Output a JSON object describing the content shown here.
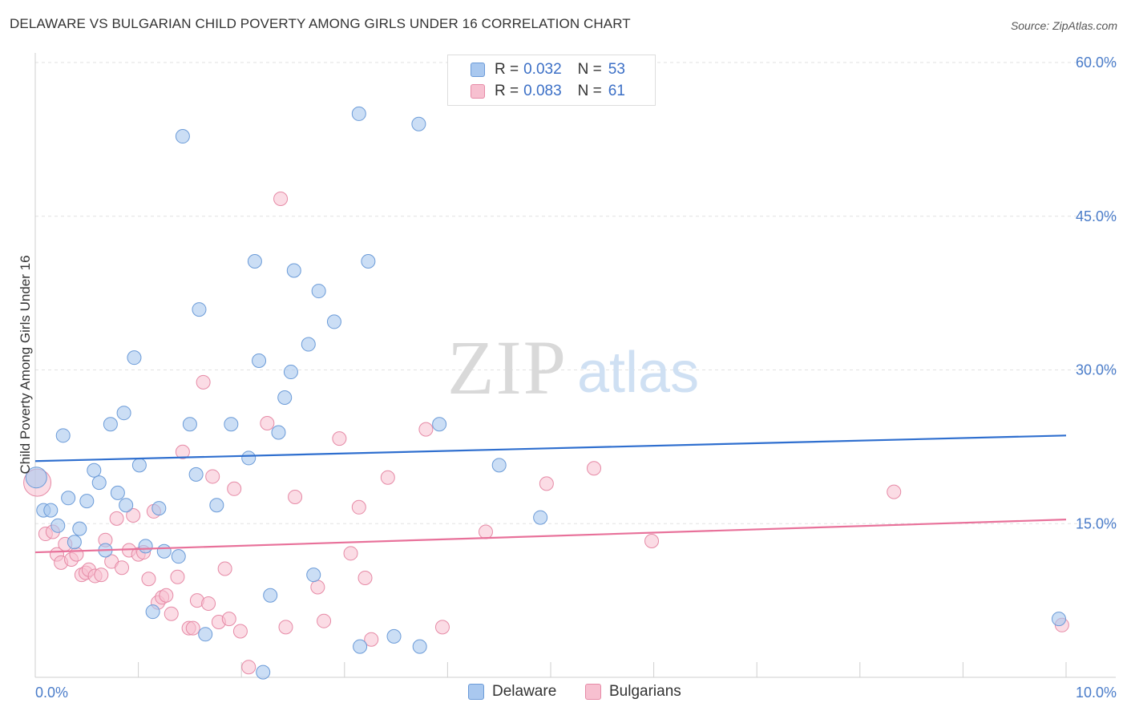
{
  "title": "DELAWARE VS BULGARIAN CHILD POVERTY AMONG GIRLS UNDER 16 CORRELATION CHART",
  "source": "Source: ZipAtlas.com",
  "watermark": {
    "zip": "ZIP",
    "atlas": "atlas"
  },
  "legend": {
    "rows": [
      {
        "r_label": "R =",
        "r_value": "0.032",
        "n_label": "N =",
        "n_value": "53",
        "color": "#a9c8ef",
        "border": "#6b9bd8"
      },
      {
        "r_label": "R =",
        "r_value": "0.083",
        "n_label": "N =",
        "n_value": "61",
        "color": "#f7c0d0",
        "border": "#e68aa6"
      }
    ]
  },
  "bottom_legend": {
    "delaware": "Delaware",
    "bulgarians": "Bulgarians"
  },
  "chart_data": {
    "type": "scatter",
    "title": "DELAWARE VS BULGARIAN CHILD POVERTY AMONG GIRLS UNDER 16 CORRELATION CHART",
    "xlabel": "",
    "ylabel": "Child Poverty Among Girls Under 16",
    "xlim": [
      0,
      10
    ],
    "ylim": [
      0,
      60
    ],
    "x_tick_labels": [
      "0.0%",
      "10.0%"
    ],
    "y_tick_labels": [
      "15.0%",
      "30.0%",
      "45.0%",
      "60.0%"
    ],
    "y_ticks": [
      15,
      30,
      45,
      60
    ],
    "grid": true,
    "legend_position": "top-center",
    "series": [
      {
        "name": "Delaware",
        "color": "#a9c8ef",
        "stroke": "#6b9bd8",
        "trend_color": "#2f6fcf",
        "trend": {
          "x0": 0,
          "y0": 21.1,
          "x1": 10,
          "y1": 23.6
        },
        "points": [
          [
            0.01,
            19.5
          ],
          [
            0.08,
            16.3
          ],
          [
            0.15,
            16.3
          ],
          [
            0.22,
            14.8
          ],
          [
            0.27,
            23.6
          ],
          [
            0.32,
            17.5
          ],
          [
            0.38,
            13.2
          ],
          [
            0.43,
            14.5
          ],
          [
            0.5,
            17.2
          ],
          [
            0.57,
            20.2
          ],
          [
            0.62,
            19.0
          ],
          [
            0.68,
            12.4
          ],
          [
            0.73,
            24.7
          ],
          [
            0.8,
            18.0
          ],
          [
            0.86,
            25.8
          ],
          [
            0.88,
            16.8
          ],
          [
            0.96,
            31.2
          ],
          [
            1.01,
            20.7
          ],
          [
            1.07,
            12.8
          ],
          [
            1.14,
            6.4
          ],
          [
            1.2,
            16.5
          ],
          [
            1.25,
            12.3
          ],
          [
            1.39,
            11.8
          ],
          [
            1.43,
            52.8
          ],
          [
            1.5,
            24.7
          ],
          [
            1.56,
            19.8
          ],
          [
            1.59,
            35.9
          ],
          [
            1.65,
            4.2
          ],
          [
            1.76,
            16.8
          ],
          [
            1.9,
            24.7
          ],
          [
            2.07,
            21.4
          ],
          [
            2.13,
            40.6
          ],
          [
            2.17,
            30.9
          ],
          [
            2.21,
            0.5
          ],
          [
            2.28,
            8.0
          ],
          [
            2.36,
            23.9
          ],
          [
            2.42,
            27.3
          ],
          [
            2.48,
            29.8
          ],
          [
            2.51,
            39.7
          ],
          [
            2.65,
            32.5
          ],
          [
            2.75,
            37.7
          ],
          [
            2.7,
            10.0
          ],
          [
            2.9,
            34.7
          ],
          [
            3.14,
            55.0
          ],
          [
            3.15,
            3.0
          ],
          [
            3.23,
            40.6
          ],
          [
            3.48,
            4.0
          ],
          [
            3.72,
            54.0
          ],
          [
            3.73,
            3.0
          ],
          [
            3.92,
            24.7
          ],
          [
            4.5,
            20.7
          ],
          [
            4.9,
            15.6
          ],
          [
            9.93,
            5.7
          ]
        ]
      },
      {
        "name": "Bulgarians",
        "color": "#f7c0d0",
        "stroke": "#e68aa6",
        "trend_color": "#e8719a",
        "trend": {
          "x0": 0,
          "y0": 12.2,
          "x1": 10,
          "y1": 15.4
        },
        "points": [
          [
            0.02,
            19.0
          ],
          [
            0.1,
            14.0
          ],
          [
            0.17,
            14.2
          ],
          [
            0.21,
            12.0
          ],
          [
            0.25,
            11.2
          ],
          [
            0.29,
            13.0
          ],
          [
            0.35,
            11.5
          ],
          [
            0.4,
            12.0
          ],
          [
            0.45,
            10.0
          ],
          [
            0.49,
            10.2
          ],
          [
            0.52,
            10.5
          ],
          [
            0.58,
            9.9
          ],
          [
            0.64,
            10.0
          ],
          [
            0.68,
            13.4
          ],
          [
            0.74,
            11.3
          ],
          [
            0.79,
            15.5
          ],
          [
            0.84,
            10.7
          ],
          [
            0.91,
            12.4
          ],
          [
            0.95,
            15.8
          ],
          [
            1.0,
            12.0
          ],
          [
            1.05,
            12.2
          ],
          [
            1.1,
            9.6
          ],
          [
            1.15,
            16.2
          ],
          [
            1.19,
            7.3
          ],
          [
            1.23,
            7.8
          ],
          [
            1.27,
            8.0
          ],
          [
            1.32,
            6.2
          ],
          [
            1.38,
            9.8
          ],
          [
            1.43,
            22.0
          ],
          [
            1.49,
            4.8
          ],
          [
            1.53,
            4.8
          ],
          [
            1.57,
            7.5
          ],
          [
            1.63,
            28.8
          ],
          [
            1.68,
            7.2
          ],
          [
            1.72,
            19.6
          ],
          [
            1.78,
            5.4
          ],
          [
            1.84,
            10.6
          ],
          [
            1.88,
            5.7
          ],
          [
            1.93,
            18.4
          ],
          [
            1.99,
            4.5
          ],
          [
            2.07,
            1.0
          ],
          [
            2.25,
            24.8
          ],
          [
            2.43,
            4.9
          ],
          [
            2.38,
            46.7
          ],
          [
            2.52,
            17.6
          ],
          [
            2.74,
            8.8
          ],
          [
            2.8,
            5.5
          ],
          [
            2.95,
            23.3
          ],
          [
            3.06,
            12.1
          ],
          [
            3.14,
            16.6
          ],
          [
            3.2,
            9.7
          ],
          [
            3.26,
            3.7
          ],
          [
            3.42,
            19.5
          ],
          [
            3.79,
            24.2
          ],
          [
            3.95,
            4.9
          ],
          [
            4.37,
            14.2
          ],
          [
            4.96,
            18.9
          ],
          [
            5.42,
            20.4
          ],
          [
            5.98,
            13.3
          ],
          [
            8.33,
            18.1
          ],
          [
            9.96,
            5.1
          ]
        ]
      }
    ]
  }
}
